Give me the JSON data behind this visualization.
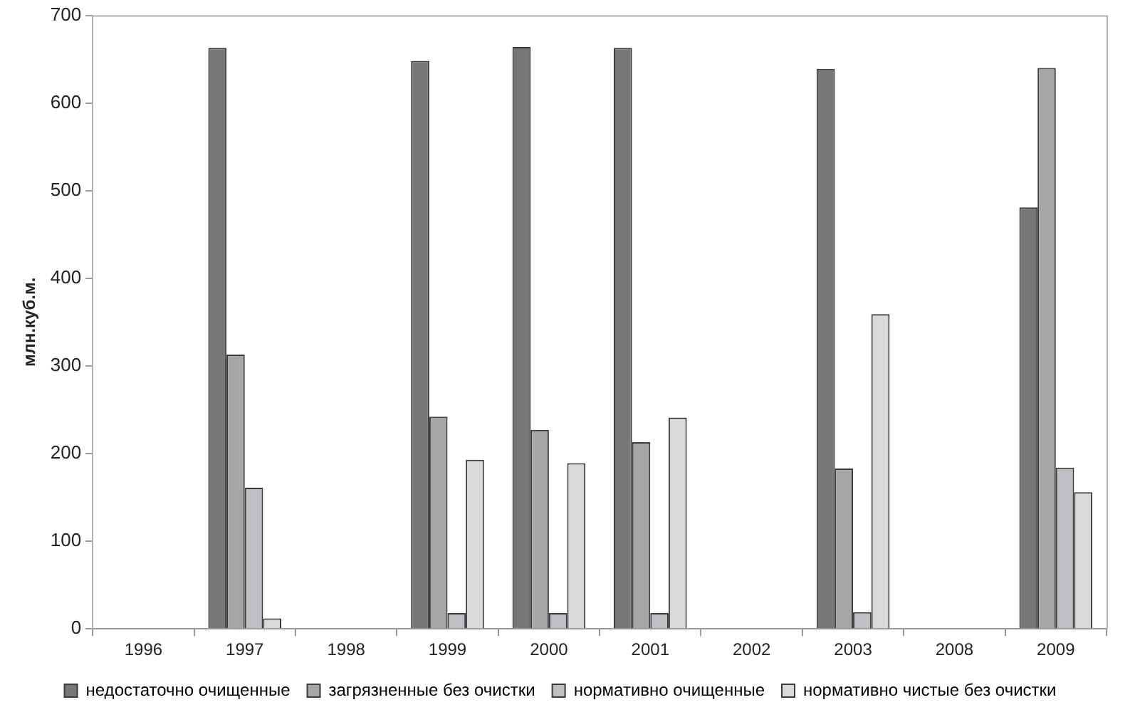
{
  "chart_data": {
    "type": "bar",
    "ylabel": "млн.куб.м.",
    "categories": [
      "1996",
      "1997",
      "1998",
      "1999",
      "2000",
      "2001",
      "2002",
      "2003",
      "2008",
      "2009"
    ],
    "series": [
      {
        "name": "недостаточно очищенные",
        "color": "#767779",
        "values": [
          null,
          663,
          null,
          648,
          664,
          663,
          null,
          639,
          null,
          481
        ]
      },
      {
        "name": "загрязненные без очистки",
        "color": "#a5a6a8",
        "values": [
          null,
          313,
          null,
          242,
          227,
          213,
          null,
          183,
          null,
          640
        ]
      },
      {
        "name": "нормативно очищенные",
        "color": "#bebfc2",
        "values": [
          null,
          161,
          null,
          18,
          18,
          18,
          null,
          19,
          null,
          184
        ]
      },
      {
        "name": "нормативно чистые без очистки",
        "color": "#d8d9db",
        "values": [
          null,
          12,
          null,
          193,
          189,
          241,
          null,
          359,
          null,
          156
        ]
      }
    ],
    "ylim": [
      0,
      700
    ],
    "yticks": [
      0,
      100,
      200,
      300,
      400,
      500,
      600,
      700
    ],
    "grid": false,
    "legend": "bottom"
  }
}
